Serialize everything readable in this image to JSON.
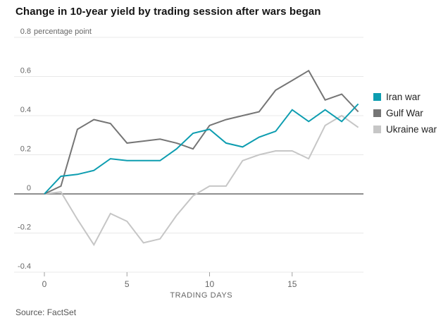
{
  "source": "Source: FactSet",
  "chart_data": {
    "type": "line",
    "title": "Change in 10-year yield by trading session after wars began",
    "xlabel": "TRADING DAYS",
    "ylabel": "",
    "unit_label": "percentage point",
    "x": [
      0,
      1,
      2,
      3,
      4,
      5,
      6,
      7,
      8,
      9,
      10,
      11,
      12,
      13,
      14,
      15,
      16,
      17,
      18,
      19
    ],
    "xticks": [
      0,
      5,
      10,
      15
    ],
    "yticks": [
      0.8,
      0.6,
      0.4,
      0.2,
      0,
      -0.2,
      -0.4
    ],
    "xlim": [
      0,
      19
    ],
    "ylim": [
      -0.4,
      0.8
    ],
    "grid": true,
    "legend_position": "right",
    "zero_baseline": true,
    "series": [
      {
        "name": "Iran war",
        "color": "#0d9db0",
        "values": [
          0,
          0.09,
          0.1,
          0.12,
          0.18,
          0.17,
          0.17,
          0.17,
          0.23,
          0.31,
          0.33,
          0.26,
          0.24,
          0.29,
          0.32,
          0.43,
          0.37,
          0.43,
          0.37,
          0.46
        ]
      },
      {
        "name": "Gulf War",
        "color": "#757575",
        "values": [
          0,
          0.04,
          0.33,
          0.38,
          0.36,
          0.26,
          0.27,
          0.28,
          0.26,
          0.23,
          0.35,
          0.38,
          0.4,
          0.42,
          0.53,
          0.58,
          0.63,
          0.48,
          0.51,
          0.42
        ]
      },
      {
        "name": "Ukraine war",
        "color": "#c6c6c6",
        "values": [
          0,
          0.01,
          -0.13,
          -0.26,
          -0.1,
          -0.14,
          -0.25,
          -0.23,
          -0.11,
          -0.01,
          0.04,
          0.04,
          0.17,
          0.2,
          0.22,
          0.22,
          0.18,
          0.35,
          0.4,
          0.34
        ]
      }
    ]
  }
}
